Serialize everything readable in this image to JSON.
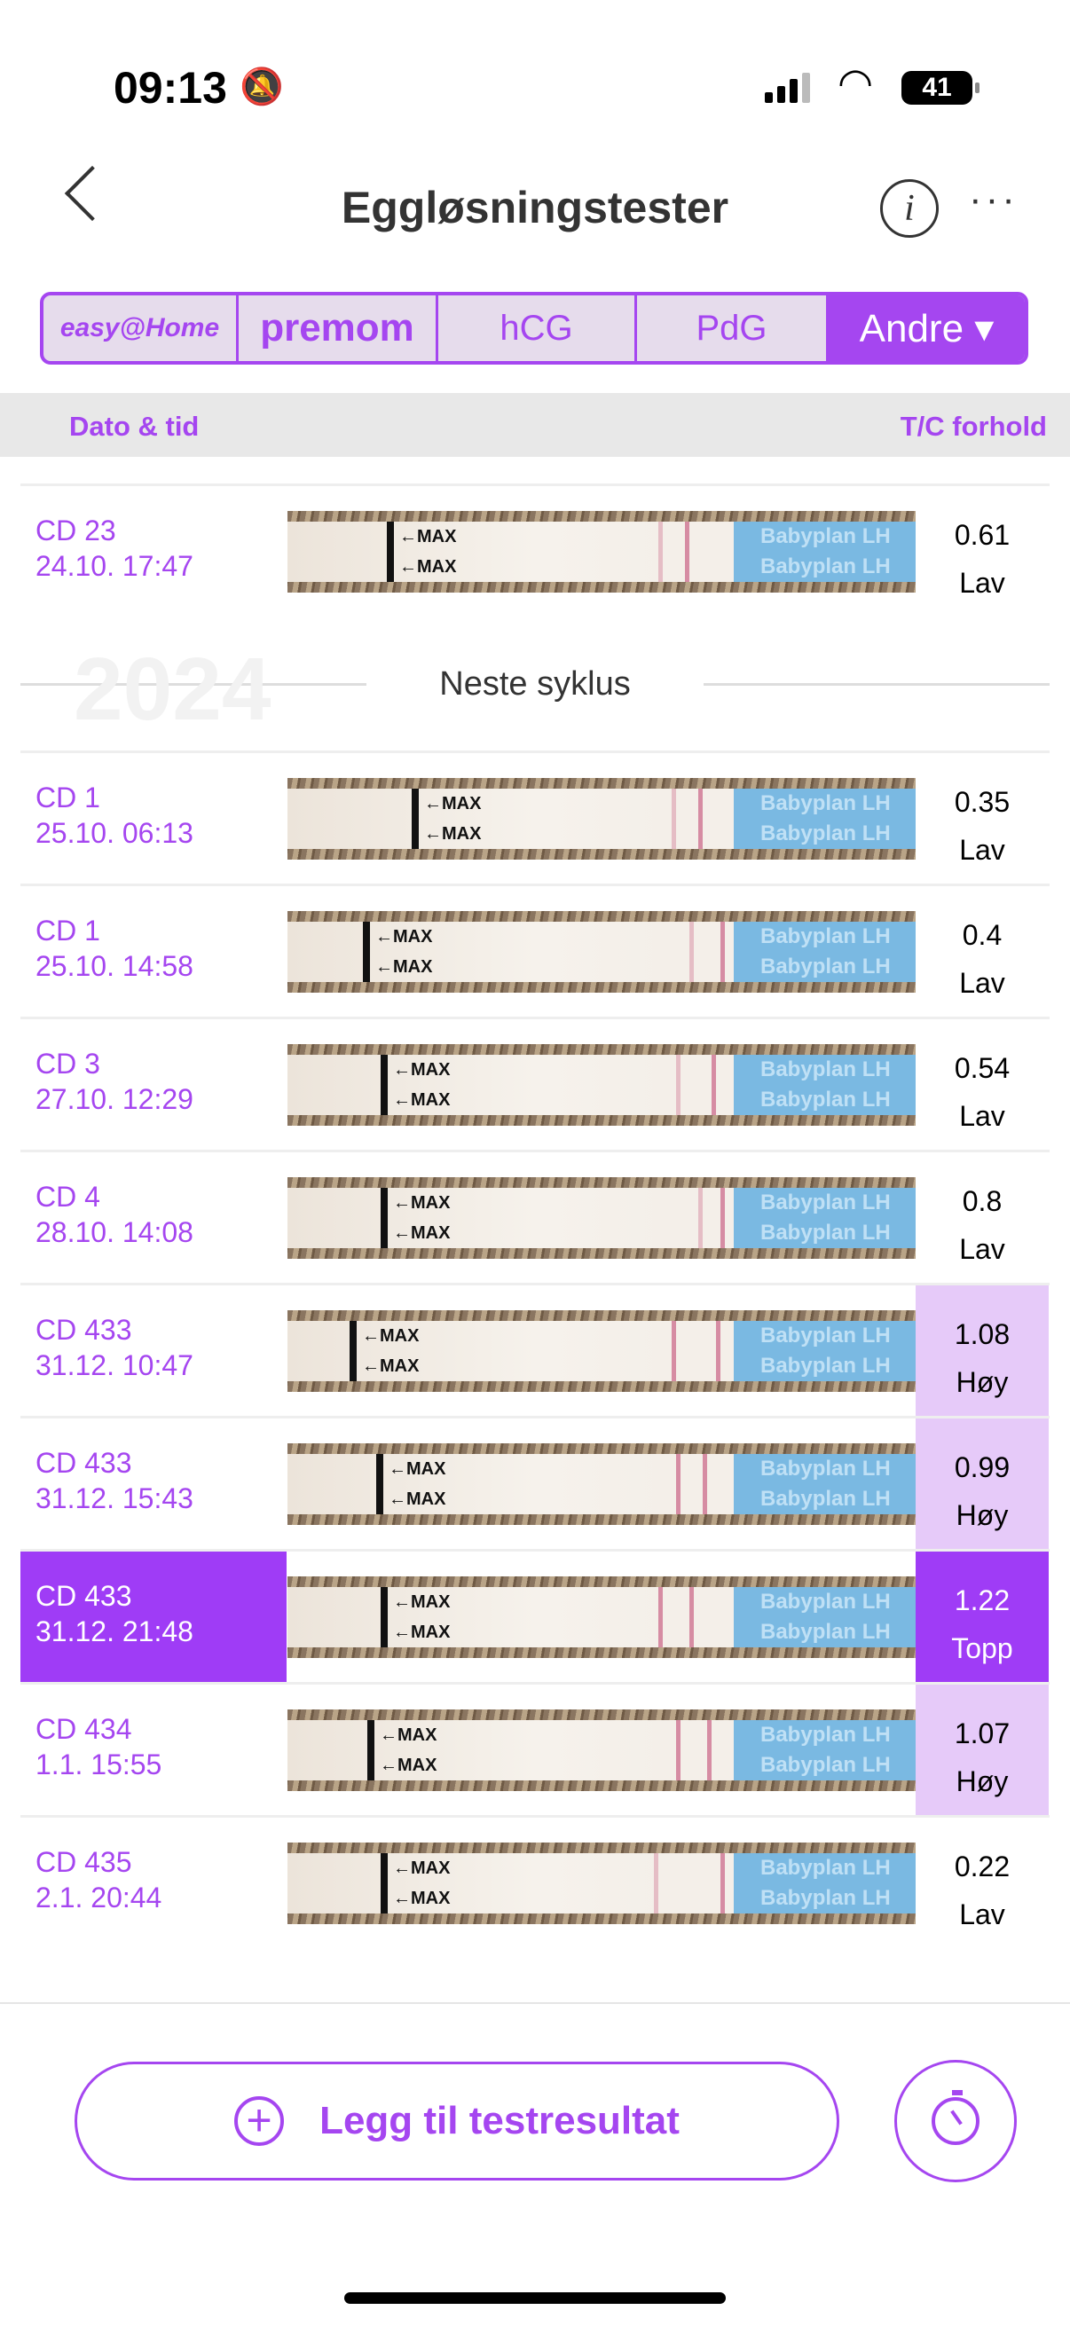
{
  "status": {
    "time": "09:13",
    "battery": "41"
  },
  "header": {
    "title": "Eggløsningstester",
    "info_label": "i",
    "more_label": "···"
  },
  "tabs": [
    {
      "label": "easy@Home",
      "active": false
    },
    {
      "label": "premom",
      "active": false
    },
    {
      "label": "hCG",
      "active": false
    },
    {
      "label": "PdG",
      "active": false
    },
    {
      "label": "Andre ▾",
      "active": true
    }
  ],
  "columns": {
    "date": "Dato & tid",
    "ratio": "T/C forhold"
  },
  "strip_text": {
    "max": "←MAX",
    "brand": "Babyplan LH"
  },
  "separator": {
    "label": "Neste syklus",
    "year": "2024"
  },
  "rows": [
    {
      "cd": "CD 23",
      "dt": "24.10. 17:47",
      "ratio": "0.61",
      "level": "Lav",
      "state": "low"
    },
    {
      "cd": "CD 1",
      "dt": "25.10. 06:13",
      "ratio": "0.35",
      "level": "Lav",
      "state": "low"
    },
    {
      "cd": "CD 1",
      "dt": "25.10. 14:58",
      "ratio": "0.4",
      "level": "Lav",
      "state": "low"
    },
    {
      "cd": "CD 3",
      "dt": "27.10. 12:29",
      "ratio": "0.54",
      "level": "Lav",
      "state": "low"
    },
    {
      "cd": "CD 4",
      "dt": "28.10. 14:08",
      "ratio": "0.8",
      "level": "Lav",
      "state": "low"
    },
    {
      "cd": "CD 433",
      "dt": "31.12. 10:47",
      "ratio": "1.08",
      "level": "Høy",
      "state": "high"
    },
    {
      "cd": "CD 433",
      "dt": "31.12. 15:43",
      "ratio": "0.99",
      "level": "Høy",
      "state": "high"
    },
    {
      "cd": "CD 433",
      "dt": "31.12. 21:48",
      "ratio": "1.22",
      "level": "Topp",
      "state": "top",
      "selected": true
    },
    {
      "cd": "CD 434",
      "dt": "1.1. 15:55",
      "ratio": "1.07",
      "level": "Høy",
      "state": "high"
    },
    {
      "cd": "CD 435",
      "dt": "2.1. 20:44",
      "ratio": "0.22",
      "level": "Lav",
      "state": "low"
    }
  ],
  "footer": {
    "add_label": "Legg til testresultat",
    "plus": "+"
  },
  "colors": {
    "accent": "#a546f0",
    "selected": "#9f3cf6",
    "high": "#e6caf9"
  }
}
